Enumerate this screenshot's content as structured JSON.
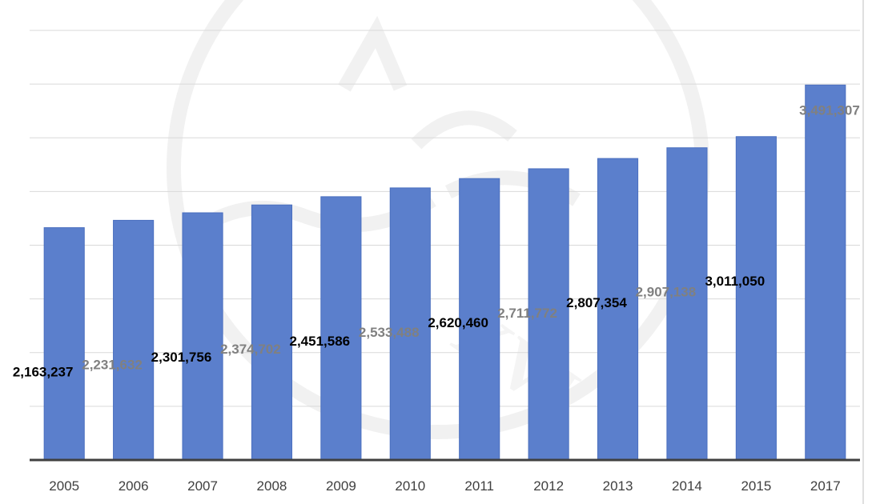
{
  "chart_data": {
    "type": "bar",
    "categories": [
      "2005",
      "2006",
      "2007",
      "2008",
      "2009",
      "2010",
      "2011",
      "2012",
      "2013",
      "2014",
      "2015",
      "2017"
    ],
    "values": [
      2163237,
      2231632,
      2301756,
      2374702,
      2451586,
      2533488,
      2620460,
      2711772,
      2807354,
      2907138,
      3011050,
      3491307
    ],
    "data_labels": [
      "2,163,237",
      "2,231,632",
      "2,301,756",
      "2,374,702",
      "2,451,586",
      "2,533,488",
      "2,620,460",
      "2,711,772",
      "2,807,354",
      "2,907,138",
      "3,011,050",
      "3,491,307"
    ],
    "data_label_colors": [
      "#000000",
      "#808080",
      "#000000",
      "#808080",
      "#000000",
      "#808080",
      "#000000",
      "#808080",
      "#000000",
      "#808080",
      "#000000",
      "#808080"
    ],
    "title": "",
    "xlabel": "",
    "ylabel": "",
    "ylim": [
      0,
      4000000
    ],
    "grid": true,
    "legend": "none",
    "bar_color": "#5b7fcc"
  }
}
